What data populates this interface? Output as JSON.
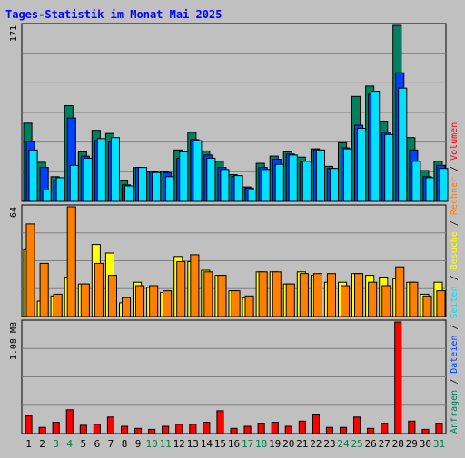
{
  "title": "Tages-Statistik im Monat Mai 2025",
  "colors": {
    "background": "#c0c0c0",
    "title": "#0000ff",
    "frame": "#000000",
    "grid": "#808080",
    "hits": "#00805c",
    "files": "#0040ff",
    "pages": "#00e0ff",
    "visits": "#ffff00",
    "sites": "#ff8000",
    "kbytes": "#ff0000",
    "weekend_label": "#008040",
    "weekday_label": "#000000"
  },
  "right_legend": {
    "items": [
      {
        "label": "Anfragen",
        "color": "#00805c"
      },
      {
        "label": "Dateien",
        "color": "#0040ff"
      },
      {
        "label": "Seiten",
        "color": "#00e0ff"
      },
      {
        "label": "Besuche",
        "color": "#ffff00"
      },
      {
        "label": "Rechner",
        "color": "#ff8000"
      },
      {
        "label": "Volumen",
        "color": "#ff0000"
      }
    ],
    "separator": " / "
  },
  "chart_data": [
    {
      "type": "bar",
      "name": "hits-panel",
      "ylabel": "171",
      "ymax": 171,
      "categories": [
        "1",
        "2",
        "3",
        "4",
        "5",
        "6",
        "7",
        "8",
        "9",
        "10",
        "11",
        "12",
        "13",
        "14",
        "15",
        "16",
        "17",
        "18",
        "19",
        "20",
        "21",
        "22",
        "23",
        "24",
        "25",
        "26",
        "27",
        "28",
        "29",
        "30",
        "31"
      ],
      "series": [
        {
          "name": "Anfragen",
          "key": "hits",
          "values": [
            76,
            38,
            24,
            93,
            48,
            69,
            66,
            20,
            33,
            29,
            29,
            50,
            67,
            49,
            39,
            26,
            14,
            37,
            44,
            48,
            43,
            51,
            34,
            57,
            102,
            112,
            78,
            171,
            62,
            30,
            39
          ]
        },
        {
          "name": "Dateien",
          "key": "files",
          "values": [
            58,
            33,
            20,
            81,
            44,
            59,
            58,
            16,
            33,
            29,
            28,
            42,
            60,
            45,
            33,
            24,
            13,
            33,
            41,
            46,
            38,
            50,
            32,
            52,
            74,
            104,
            67,
            125,
            50,
            24,
            35
          ]
        },
        {
          "name": "Seiten",
          "key": "pages",
          "values": [
            50,
            11,
            23,
            35,
            42,
            61,
            62,
            15,
            33,
            28,
            24,
            48,
            59,
            42,
            31,
            25,
            11,
            31,
            36,
            45,
            39,
            50,
            32,
            51,
            71,
            107,
            65,
            110,
            39,
            23,
            32
          ]
        }
      ]
    },
    {
      "type": "bar",
      "name": "visits-panel",
      "ylabel": "64",
      "ymax": 64,
      "categories": [
        "1",
        "2",
        "3",
        "4",
        "5",
        "6",
        "7",
        "8",
        "9",
        "10",
        "11",
        "12",
        "13",
        "14",
        "15",
        "16",
        "17",
        "18",
        "19",
        "20",
        "21",
        "22",
        "23",
        "24",
        "25",
        "26",
        "27",
        "28",
        "29",
        "30",
        "31"
      ],
      "series": [
        {
          "name": "Besuche",
          "key": "visits",
          "values": [
            39,
            9,
            12,
            23,
            19,
            42,
            37,
            8,
            20,
            17,
            14,
            35,
            32,
            27,
            24,
            15,
            11,
            26,
            26,
            19,
            26,
            24,
            20,
            20,
            25,
            24,
            23,
            22,
            20,
            13,
            20
          ]
        },
        {
          "name": "Rechner",
          "key": "sites",
          "values": [
            54,
            31,
            13,
            64,
            19,
            31,
            24,
            11,
            18,
            18,
            15,
            32,
            36,
            26,
            24,
            15,
            12,
            26,
            26,
            19,
            25,
            25,
            25,
            18,
            25,
            20,
            18,
            29,
            20,
            12,
            15
          ]
        }
      ]
    },
    {
      "type": "bar",
      "name": "volume-panel",
      "ylabel": "1.08 MB",
      "ymax": 1.08,
      "unit": "MB",
      "categories": [
        "1",
        "2",
        "3",
        "4",
        "5",
        "6",
        "7",
        "8",
        "9",
        "10",
        "11",
        "12",
        "13",
        "14",
        "15",
        "16",
        "17",
        "18",
        "19",
        "20",
        "21",
        "22",
        "23",
        "24",
        "25",
        "26",
        "27",
        "28",
        "29",
        "30",
        "31"
      ],
      "series": [
        {
          "name": "Volumen",
          "key": "kbytes",
          "values": [
            0.17,
            0.06,
            0.11,
            0.23,
            0.08,
            0.09,
            0.16,
            0.07,
            0.05,
            0.04,
            0.07,
            0.09,
            0.09,
            0.11,
            0.22,
            0.05,
            0.07,
            0.1,
            0.11,
            0.07,
            0.12,
            0.18,
            0.06,
            0.06,
            0.16,
            0.05,
            0.1,
            1.08,
            0.12,
            0.04,
            0.1
          ]
        }
      ]
    }
  ],
  "x_axis": {
    "labels": [
      "1",
      "2",
      "3",
      "4",
      "5",
      "6",
      "7",
      "8",
      "9",
      "10",
      "11",
      "12",
      "13",
      "14",
      "15",
      "16",
      "17",
      "18",
      "19",
      "20",
      "21",
      "22",
      "23",
      "24",
      "25",
      "26",
      "27",
      "28",
      "29",
      "30",
      "31"
    ],
    "weekend": [
      false,
      false,
      true,
      true,
      false,
      false,
      false,
      false,
      false,
      true,
      true,
      false,
      false,
      false,
      false,
      false,
      true,
      true,
      false,
      false,
      false,
      false,
      false,
      true,
      true,
      false,
      false,
      false,
      false,
      false,
      true
    ]
  }
}
